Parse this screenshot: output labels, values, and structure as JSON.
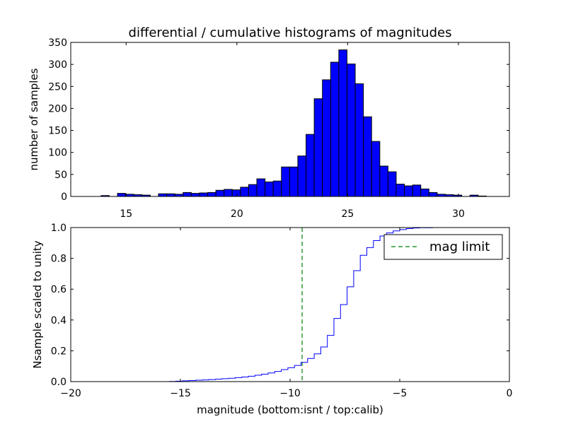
{
  "figure": {
    "title": "differential / cumulative histograms of magnitudes"
  },
  "chart_data": [
    {
      "type": "bar",
      "name": "histogram",
      "ylabel": "number of samples",
      "x_axis_position": "bottom",
      "xlim": [
        12.5,
        32.3
      ],
      "ylim": [
        0,
        350
      ],
      "xticks": [
        15,
        20,
        25,
        30
      ],
      "yticks": [
        0,
        50,
        100,
        150,
        200,
        250,
        300,
        350
      ],
      "bin_width": 0.37,
      "bins_left": [
        13.5,
        13.87,
        14.24,
        14.61,
        14.98,
        15.35,
        15.72,
        16.09,
        16.46,
        16.83,
        17.2,
        17.57,
        17.94,
        18.31,
        18.68,
        19.05,
        19.42,
        19.79,
        20.16,
        20.53,
        20.9,
        21.27,
        21.64,
        22.01,
        22.38,
        22.75,
        23.12,
        23.49,
        23.86,
        24.23,
        24.6,
        24.97,
        25.34,
        25.71,
        26.08,
        26.45,
        26.82,
        27.19,
        27.56,
        27.93,
        28.3,
        28.67,
        29.04,
        29.41,
        29.78,
        30.15,
        30.52,
        30.89
      ],
      "values": [
        0,
        2,
        0,
        7,
        5,
        4,
        3,
        0,
        6,
        6,
        5,
        9,
        7,
        8,
        9,
        14,
        16,
        15,
        21,
        27,
        40,
        33,
        35,
        67,
        67,
        92,
        141,
        222,
        265,
        305,
        333,
        301,
        256,
        181,
        125,
        69,
        56,
        28,
        24,
        26,
        17,
        9,
        5,
        4,
        3,
        0,
        3,
        1
      ],
      "color": "#0000ff",
      "grid": false
    },
    {
      "type": "line",
      "name": "cumulative",
      "xlabel": "magnitude (bottom:isnt / top:calib)",
      "ylabel": "Nsample scaled to unity",
      "xlim": [
        -20,
        0
      ],
      "ylim": [
        0,
        1.0
      ],
      "xticks": [
        -20,
        -15,
        -10,
        -5,
        0
      ],
      "xtick_labels": [
        "−20",
        "−15",
        "−10",
        "−5",
        "0"
      ],
      "yticks": [
        0.0,
        0.2,
        0.4,
        0.6,
        0.8,
        1.0
      ],
      "ytick_labels": [
        "0.0",
        "0.2",
        "0.4",
        "0.6",
        "0.8",
        "1.0"
      ],
      "step_x": [
        -20.0,
        -15.5,
        -15.2,
        -14.9,
        -14.6,
        -14.3,
        -14.0,
        -13.7,
        -13.4,
        -13.1,
        -12.8,
        -12.5,
        -12.2,
        -11.9,
        -11.6,
        -11.3,
        -11.0,
        -10.7,
        -10.4,
        -10.1,
        -9.8,
        -9.5,
        -9.2,
        -8.9,
        -8.6,
        -8.3,
        -8.0,
        -7.7,
        -7.4,
        -7.1,
        -6.8,
        -6.5,
        -6.2,
        -5.9,
        -5.6,
        -5.3,
        -5.0,
        -4.7,
        -4.4,
        -4.1,
        -3.5,
        -0.05
      ],
      "step_y": [
        0.0,
        0.001,
        0.003,
        0.005,
        0.007,
        0.009,
        0.011,
        0.013,
        0.016,
        0.019,
        0.022,
        0.026,
        0.03,
        0.035,
        0.041,
        0.048,
        0.056,
        0.066,
        0.078,
        0.09,
        0.105,
        0.125,
        0.15,
        0.18,
        0.225,
        0.3,
        0.41,
        0.5,
        0.615,
        0.72,
        0.82,
        0.87,
        0.915,
        0.945,
        0.965,
        0.978,
        0.987,
        0.993,
        0.997,
        0.999,
        1.0,
        1.0
      ],
      "line_color": "#0000ff",
      "reference_line": {
        "label": "mag limit",
        "x": -9.45,
        "color": "#008000",
        "style": "dashed"
      },
      "legend_placement": "upper-right",
      "grid": false
    }
  ]
}
